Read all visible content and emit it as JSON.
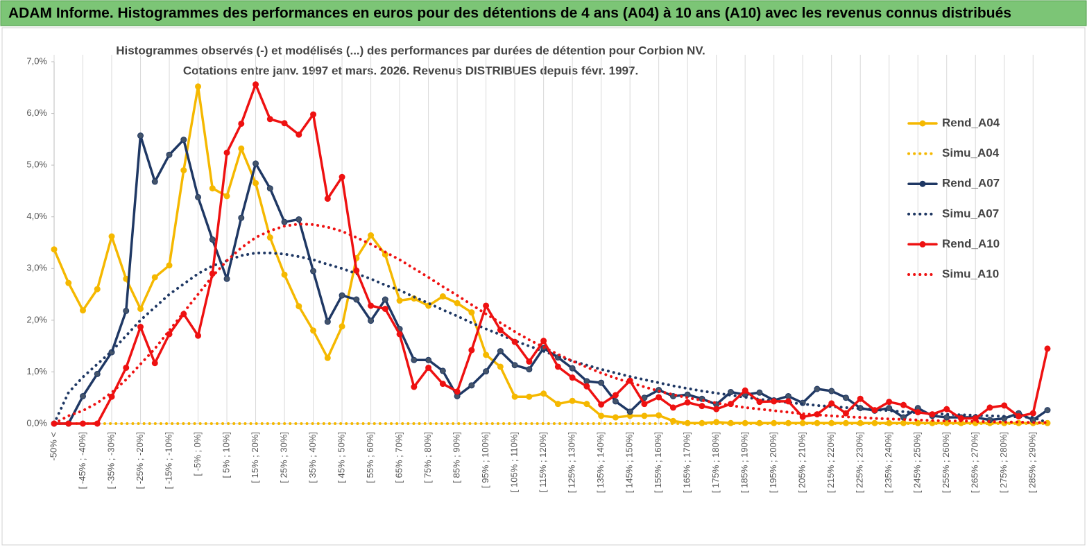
{
  "header": "ADAM Informe. Histogrammes des performances en euros pour des détentions de 4 ans (A04) à 10 ans (A10) avec les revenus connus distribués",
  "chart_data": {
    "type": "line",
    "title": "Histogrammes observés (-) et modélisés (...) des performances par durées de détention pour Corbion NV.",
    "subtitle": "Cotations entre janv. 1997 et mars. 2026. Revenus DISTRIBUES depuis févr. 1997.",
    "categories": [
      "-50% <",
      null,
      "[ -45% ; -40%]",
      null,
      "[ -35% ; -30%]",
      null,
      "[ -25% ; -20%]",
      null,
      "[ -15% ; -10%]",
      null,
      "[ -5% ; 0%]",
      null,
      "[ 5% ; 10%]",
      null,
      "[ 15% ; 20%]",
      null,
      "[ 25% ; 30%]",
      null,
      "[ 35% ; 40%]",
      null,
      "[ 45% ; 50%]",
      null,
      "[ 55% ; 60%]",
      null,
      "[ 65% ; 70%]",
      null,
      "[ 75% ; 80%]",
      null,
      "[ 85% ; 90%]",
      null,
      "[ 95% ; 100%]",
      null,
      "[ 105% ; 110%]",
      null,
      "[ 115% ; 120%]",
      null,
      "[ 125% ; 130%]",
      null,
      "[ 135% ; 140%]",
      null,
      "[ 145% ; 150%]",
      null,
      "[ 155% ; 160%]",
      null,
      "[ 165% ; 170%]",
      null,
      "[ 175% ; 180%]",
      null,
      "[ 185% ; 190%]",
      null,
      "[ 195% ; 200%]",
      null,
      "[ 205% ; 210%]",
      null,
      "[ 215% ; 220%]",
      null,
      "[ 225% ; 230%]",
      null,
      "[ 235% ; 240%]",
      null,
      "[ 245% ; 250%]",
      null,
      "[ 255% ; 260%]",
      null,
      "[ 265% ; 270%]",
      null,
      "[ 275% ; 280%]",
      null,
      "[ 285% ; 290%]",
      null
    ],
    "ylim": [
      0,
      7
    ],
    "yticks": [
      {
        "value": 0,
        "label": "0,0%"
      },
      {
        "value": 1,
        "label": "1,0%"
      },
      {
        "value": 2,
        "label": "2,0%"
      },
      {
        "value": 3,
        "label": "3,0%"
      },
      {
        "value": 4,
        "label": "4,0%"
      },
      {
        "value": 5,
        "label": "5,0%"
      },
      {
        "value": 6,
        "label": "6,0%"
      },
      {
        "value": 7,
        "label": "7,0%"
      }
    ],
    "legend": "right",
    "series": [
      {
        "name": "Rend_A04",
        "color": "#f5b800",
        "style": "solid",
        "markers": true,
        "values": [
          3.37,
          2.72,
          2.19,
          2.6,
          3.62,
          2.8,
          2.22,
          2.83,
          3.06,
          4.9,
          6.52,
          4.55,
          4.4,
          5.32,
          4.65,
          3.6,
          2.88,
          2.27,
          1.8,
          1.27,
          1.88,
          3.2,
          3.64,
          3.27,
          2.38,
          2.42,
          2.28,
          2.46,
          2.33,
          2.15,
          1.33,
          1.1,
          0.52,
          0.52,
          0.58,
          0.38,
          0.44,
          0.38,
          0.15,
          0.12,
          0.15,
          0.15,
          0.16,
          0.05,
          0.01,
          0.01,
          0.03,
          0.01,
          0.01,
          0.01,
          0.01,
          0.01,
          0.01,
          0.01,
          0.01,
          0.01,
          0.01,
          0.01,
          0.01,
          0.01,
          0.01,
          0.01,
          0.01,
          0.01,
          0.01,
          0.01,
          0.01,
          0.01,
          0.01,
          0.01
        ]
      },
      {
        "name": "Simu_A04",
        "color": "#f5b800",
        "style": "dotted",
        "markers": false,
        "values": [
          0,
          0,
          0,
          0,
          0,
          0,
          0,
          0,
          0,
          0,
          0,
          0,
          0,
          0,
          0,
          0,
          0,
          0,
          0,
          0,
          0,
          0,
          0,
          0,
          0,
          0,
          0,
          0,
          0,
          0,
          0,
          0,
          0,
          0,
          0,
          0,
          0,
          0,
          0,
          0,
          0,
          0,
          0,
          0,
          0,
          0,
          0,
          0,
          0,
          0,
          0,
          0,
          0,
          0,
          0,
          0,
          0,
          0,
          0,
          0,
          0,
          0,
          0,
          0,
          0,
          0,
          0,
          0,
          0,
          0
        ]
      },
      {
        "name": "Rend_A07",
        "color": "#1f3864",
        "style": "solid",
        "markers": true,
        "values": [
          0,
          0,
          0.53,
          0.96,
          1.38,
          2.18,
          5.57,
          4.68,
          5.2,
          5.49,
          4.38,
          3.56,
          2.8,
          3.98,
          5.03,
          4.55,
          3.9,
          3.95,
          2.95,
          1.97,
          2.48,
          2.4,
          1.99,
          2.4,
          1.83,
          1.23,
          1.23,
          1.02,
          0.53,
          0.74,
          1.01,
          1.4,
          1.13,
          1.05,
          1.46,
          1.28,
          1.07,
          0.82,
          0.79,
          0.43,
          0.23,
          0.5,
          0.65,
          0.53,
          0.56,
          0.48,
          0.37,
          0.61,
          0.56,
          0.6,
          0.45,
          0.53,
          0.4,
          0.67,
          0.63,
          0.5,
          0.3,
          0.25,
          0.3,
          0.12,
          0.3,
          0.15,
          0.12,
          0.12,
          0.12,
          0.07,
          0.1,
          0.2,
          0.07,
          0.26
        ]
      },
      {
        "name": "Simu_A07",
        "color": "#1f3864",
        "style": "dotted",
        "markers": false,
        "values": [
          0,
          0.6,
          0.9,
          1.15,
          1.4,
          1.7,
          2.0,
          2.25,
          2.5,
          2.7,
          2.9,
          3.05,
          3.15,
          3.25,
          3.3,
          3.3,
          3.28,
          3.23,
          3.17,
          3.08,
          3.0,
          2.9,
          2.8,
          2.68,
          2.58,
          2.45,
          2.33,
          2.2,
          2.08,
          1.95,
          1.83,
          1.72,
          1.6,
          1.5,
          1.4,
          1.3,
          1.21,
          1.13,
          1.05,
          0.98,
          0.91,
          0.85,
          0.79,
          0.73,
          0.68,
          0.63,
          0.59,
          0.55,
          0.51,
          0.47,
          0.44,
          0.41,
          0.38,
          0.35,
          0.33,
          0.31,
          0.29,
          0.27,
          0.25,
          0.23,
          0.21,
          0.2,
          0.18,
          0.17,
          0.16,
          0.15,
          0.14,
          0.13,
          0.12,
          0.02
        ]
      },
      {
        "name": "Rend_A10",
        "color": "#ee1111",
        "style": "solid",
        "markers": true,
        "values": [
          0,
          0,
          0,
          0,
          0.52,
          1.08,
          1.87,
          1.17,
          1.73,
          2.12,
          1.7,
          2.9,
          5.24,
          5.8,
          6.56,
          5.89,
          5.81,
          5.59,
          5.98,
          4.35,
          4.77,
          2.96,
          2.28,
          2.22,
          1.73,
          0.71,
          1.08,
          0.77,
          0.62,
          1.42,
          2.28,
          1.81,
          1.58,
          1.2,
          1.6,
          1.1,
          0.89,
          0.72,
          0.37,
          0.55,
          0.83,
          0.38,
          0.51,
          0.31,
          0.41,
          0.34,
          0.28,
          0.38,
          0.64,
          0.42,
          0.43,
          0.43,
          0.13,
          0.18,
          0.39,
          0.2,
          0.48,
          0.26,
          0.42,
          0.36,
          0.22,
          0.18,
          0.28,
          0.1,
          0.1,
          0.31,
          0.35,
          0.14,
          0.2,
          1.45
        ]
      },
      {
        "name": "Simu_A10",
        "color": "#ee1111",
        "style": "dotted",
        "markers": false,
        "values": [
          0,
          0.15,
          0.25,
          0.4,
          0.6,
          0.85,
          1.15,
          1.45,
          1.8,
          2.15,
          2.5,
          2.85,
          3.15,
          3.4,
          3.6,
          3.73,
          3.82,
          3.86,
          3.85,
          3.8,
          3.72,
          3.6,
          3.47,
          3.32,
          3.17,
          3.0,
          2.83,
          2.65,
          2.48,
          2.3,
          2.12,
          1.95,
          1.78,
          1.62,
          1.48,
          1.34,
          1.21,
          1.09,
          0.98,
          0.88,
          0.79,
          0.71,
          0.63,
          0.56,
          0.5,
          0.45,
          0.4,
          0.35,
          0.31,
          0.28,
          0.25,
          0.22,
          0.19,
          0.17,
          0.15,
          0.13,
          0.12,
          0.1,
          0.09,
          0.08,
          0.07,
          0.06,
          0.05,
          0.05,
          0.04,
          0.04,
          0.03,
          0.03,
          0.02,
          0.02
        ]
      }
    ]
  }
}
